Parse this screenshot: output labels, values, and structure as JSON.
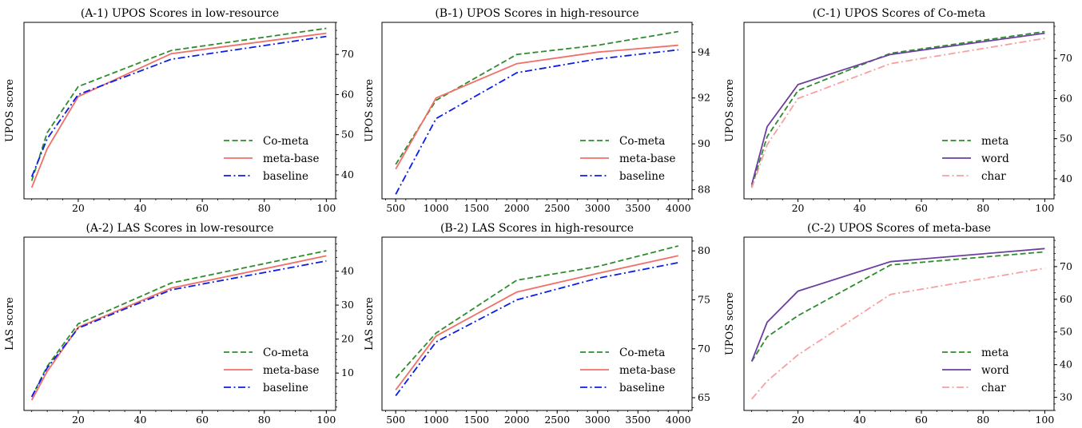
{
  "colors": {
    "green": "#2e8b2e",
    "red": "#f07068",
    "blue": "#0a1ee8",
    "purple": "#6a3fa0",
    "pink": "#f7a0a0"
  },
  "chart_data": [
    {
      "type": "line",
      "title": "(A-1) UPOS Scores in low-resource",
      "xlabel": "",
      "ylabel": "UPOS score",
      "yaxis_side": "right",
      "legend": "lower-right",
      "grid": false,
      "xlim": [
        2.5,
        103
      ],
      "ylim": [
        34,
        78
      ],
      "xticks": [
        20,
        40,
        60,
        80,
        100
      ],
      "yticks": [
        40,
        50,
        60,
        70
      ],
      "xtick_labels": [
        "20",
        "40",
        "60",
        "80",
        "100"
      ],
      "ytick_labels": [
        "40",
        "50",
        "60",
        "70"
      ],
      "x": [
        5,
        10,
        20,
        50,
        100
      ],
      "series": [
        {
          "name": "Co-meta",
          "color": "green",
          "dash": "dashed",
          "values": [
            38.5,
            50.5,
            62,
            71,
            76.5
          ]
        },
        {
          "name": "meta-base",
          "color": "red",
          "dash": "solid",
          "values": [
            36.8,
            46.5,
            59.5,
            70.2,
            75.3
          ]
        },
        {
          "name": "baseline",
          "color": "blue",
          "dash": "dashdot",
          "values": [
            39.5,
            49,
            60,
            68.8,
            74.5
          ]
        }
      ]
    },
    {
      "type": "line",
      "title": "(B-1) UPOS Scores in high-resource",
      "xlabel": "",
      "ylabel": "UPOS score",
      "yaxis_side": "right",
      "legend": "lower-right",
      "grid": false,
      "xlim": [
        330,
        4170
      ],
      "ylim": [
        87.6,
        95.3
      ],
      "xticks": [
        500,
        1000,
        1500,
        2000,
        2500,
        3000,
        3500,
        4000
      ],
      "yticks": [
        88,
        90,
        92,
        94
      ],
      "xtick_labels": [
        "500",
        "1000",
        "1500",
        "2000",
        "2500",
        "3000",
        "3500",
        "4000"
      ],
      "ytick_labels": [
        "88",
        "90",
        "92",
        "94"
      ],
      "x": [
        500,
        1000,
        2000,
        3000,
        4000
      ],
      "series": [
        {
          "name": "Co-meta",
          "color": "green",
          "dash": "dashed",
          "values": [
            89.1,
            91.9,
            93.9,
            94.3,
            94.9
          ]
        },
        {
          "name": "meta-base",
          "color": "red",
          "dash": "solid",
          "values": [
            88.9,
            92,
            93.5,
            94,
            94.3
          ]
        },
        {
          "name": "baseline",
          "color": "blue",
          "dash": "dashdot",
          "values": [
            87.8,
            91.1,
            93.1,
            93.7,
            94.1
          ]
        }
      ]
    },
    {
      "type": "line",
      "title": "(C-1) UPOS Scores of Co-meta",
      "xlabel": "",
      "ylabel": "UPOS score",
      "yaxis_side": "right",
      "legend": "lower-right",
      "grid": false,
      "xlim": [
        2.5,
        103
      ],
      "ylim": [
        35,
        79
      ],
      "xticks": [
        20,
        40,
        60,
        80,
        100
      ],
      "yticks": [
        40,
        50,
        60,
        70
      ],
      "xtick_labels": [
        "20",
        "40",
        "60",
        "80",
        "100"
      ],
      "ytick_labels": [
        "40",
        "50",
        "60",
        "70"
      ],
      "x": [
        5,
        10,
        20,
        50,
        100
      ],
      "series": [
        {
          "name": "meta",
          "color": "green",
          "dash": "dashed",
          "values": [
            38,
            50.5,
            62,
            71.3,
            76.7
          ]
        },
        {
          "name": "word",
          "color": "purple",
          "dash": "solid",
          "values": [
            38.5,
            53,
            63.5,
            71,
            76.3
          ]
        },
        {
          "name": "char",
          "color": "pink",
          "dash": "dashdot",
          "values": [
            37.7,
            48.5,
            60,
            68.7,
            75
          ]
        }
      ]
    },
    {
      "type": "line",
      "title": "(A-2) LAS Scores in low-resource",
      "xlabel": "",
      "ylabel": "LAS score",
      "yaxis_side": "right",
      "legend": "lower-right",
      "grid": false,
      "xlim": [
        2.5,
        103
      ],
      "ylim": [
        -1,
        50
      ],
      "xticks": [
        20,
        40,
        60,
        80,
        100
      ],
      "yticks": [
        10,
        20,
        30,
        40
      ],
      "xtick_labels": [
        "20",
        "40",
        "60",
        "80",
        "100"
      ],
      "ytick_labels": [
        "10",
        "20",
        "30",
        "40"
      ],
      "x": [
        5,
        10,
        20,
        50,
        100
      ],
      "series": [
        {
          "name": "Co-meta",
          "color": "green",
          "dash": "dashed",
          "values": [
            3,
            12,
            24.5,
            36.5,
            46
          ]
        },
        {
          "name": "meta-base",
          "color": "red",
          "dash": "solid",
          "values": [
            2,
            10.5,
            23.5,
            35,
            44.5
          ]
        },
        {
          "name": "baseline",
          "color": "blue",
          "dash": "dashdot",
          "values": [
            3,
            11.5,
            23.2,
            34.5,
            43
          ]
        }
      ]
    },
    {
      "type": "line",
      "title": "(B-2) LAS Scores in high-resource",
      "xlabel": "",
      "ylabel": "LAS score",
      "yaxis_side": "right",
      "legend": "lower-right",
      "grid": false,
      "xlim": [
        330,
        4170
      ],
      "ylim": [
        63.7,
        81.4
      ],
      "xticks": [
        500,
        1000,
        1500,
        2000,
        2500,
        3000,
        3500,
        4000
      ],
      "yticks": [
        65,
        70,
        75,
        80
      ],
      "xtick_labels": [
        "500",
        "1000",
        "1500",
        "2000",
        "2500",
        "3000",
        "3500",
        "4000"
      ],
      "ytick_labels": [
        "65",
        "70",
        "75",
        "80"
      ],
      "x": [
        500,
        1000,
        2000,
        3000,
        4000
      ],
      "series": [
        {
          "name": "Co-meta",
          "color": "green",
          "dash": "dashed",
          "values": [
            67,
            71.6,
            77,
            78.4,
            80.5
          ]
        },
        {
          "name": "meta-base",
          "color": "red",
          "dash": "solid",
          "values": [
            65.8,
            71.3,
            75.8,
            77.7,
            79.5
          ]
        },
        {
          "name": "baseline",
          "color": "blue",
          "dash": "dashdot",
          "values": [
            65.2,
            70.7,
            75,
            77.2,
            78.8
          ]
        }
      ]
    },
    {
      "type": "line",
      "title": "(C-2) UPOS Scores of meta-base",
      "xlabel": "",
      "ylabel": "UPOS score",
      "yaxis_side": "right",
      "legend": "lower-right",
      "grid": false,
      "xlim": [
        2.5,
        103
      ],
      "ylim": [
        26,
        79
      ],
      "xticks": [
        20,
        40,
        60,
        80,
        100
      ],
      "yticks": [
        30,
        40,
        50,
        60,
        70
      ],
      "xtick_labels": [
        "20",
        "40",
        "60",
        "80",
        "100"
      ],
      "ytick_labels": [
        "30",
        "40",
        "50",
        "60",
        "70"
      ],
      "x": [
        5,
        10,
        20,
        50,
        100
      ],
      "series": [
        {
          "name": "meta",
          "color": "green",
          "dash": "dashed",
          "values": [
            41,
            48.5,
            55,
            70.5,
            74.5
          ]
        },
        {
          "name": "word",
          "color": "purple",
          "dash": "solid",
          "values": [
            41,
            53,
            62.5,
            71.5,
            75.5
          ]
        },
        {
          "name": "char",
          "color": "pink",
          "dash": "dashdot",
          "values": [
            29.5,
            35,
            43,
            61.5,
            69.5
          ]
        }
      ]
    }
  ]
}
